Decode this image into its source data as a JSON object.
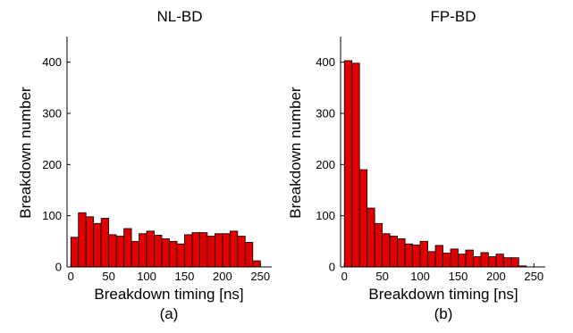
{
  "chart_data": [
    {
      "type": "bar",
      "title": "NL-BD",
      "caption": "(a)",
      "xlabel": "Breakdown timing [ns]",
      "ylabel": "Breakdown number",
      "xlim": [
        -5,
        265
      ],
      "ylim": [
        0,
        450
      ],
      "xticks": [
        "0",
        "50",
        "100",
        "150",
        "200",
        "250"
      ],
      "yticks": [
        "0",
        "100",
        "200",
        "300",
        "400"
      ],
      "bin_width": 10,
      "x": [
        0,
        10,
        20,
        30,
        40,
        50,
        60,
        70,
        80,
        90,
        100,
        110,
        120,
        130,
        140,
        150,
        160,
        170,
        180,
        190,
        200,
        210,
        220,
        230,
        240
      ],
      "values": [
        58,
        106,
        98,
        85,
        95,
        63,
        60,
        75,
        50,
        65,
        70,
        62,
        55,
        50,
        45,
        63,
        67,
        67,
        60,
        65,
        65,
        70,
        60,
        48,
        12
      ],
      "bar_color": "#e00000",
      "grid": false
    },
    {
      "type": "bar",
      "title": "FP-BD",
      "caption": "(b)",
      "xlabel": "Breakdown timing [ns]",
      "ylabel": "Breakdown number",
      "xlim": [
        -5,
        265
      ],
      "ylim": [
        0,
        450
      ],
      "xticks": [
        "0",
        "50",
        "100",
        "150",
        "200",
        "250"
      ],
      "yticks": [
        "0",
        "100",
        "200",
        "300",
        "400"
      ],
      "bin_width": 10,
      "x": [
        0,
        10,
        20,
        30,
        40,
        50,
        60,
        70,
        80,
        90,
        100,
        110,
        120,
        130,
        140,
        150,
        160,
        170,
        180,
        190,
        200,
        210,
        220,
        230,
        240
      ],
      "values": [
        403,
        398,
        190,
        115,
        85,
        65,
        60,
        55,
        45,
        43,
        50,
        30,
        42,
        27,
        35,
        25,
        33,
        20,
        28,
        20,
        25,
        18,
        18,
        2,
        0
      ],
      "bar_color": "#e00000",
      "grid": false
    }
  ]
}
